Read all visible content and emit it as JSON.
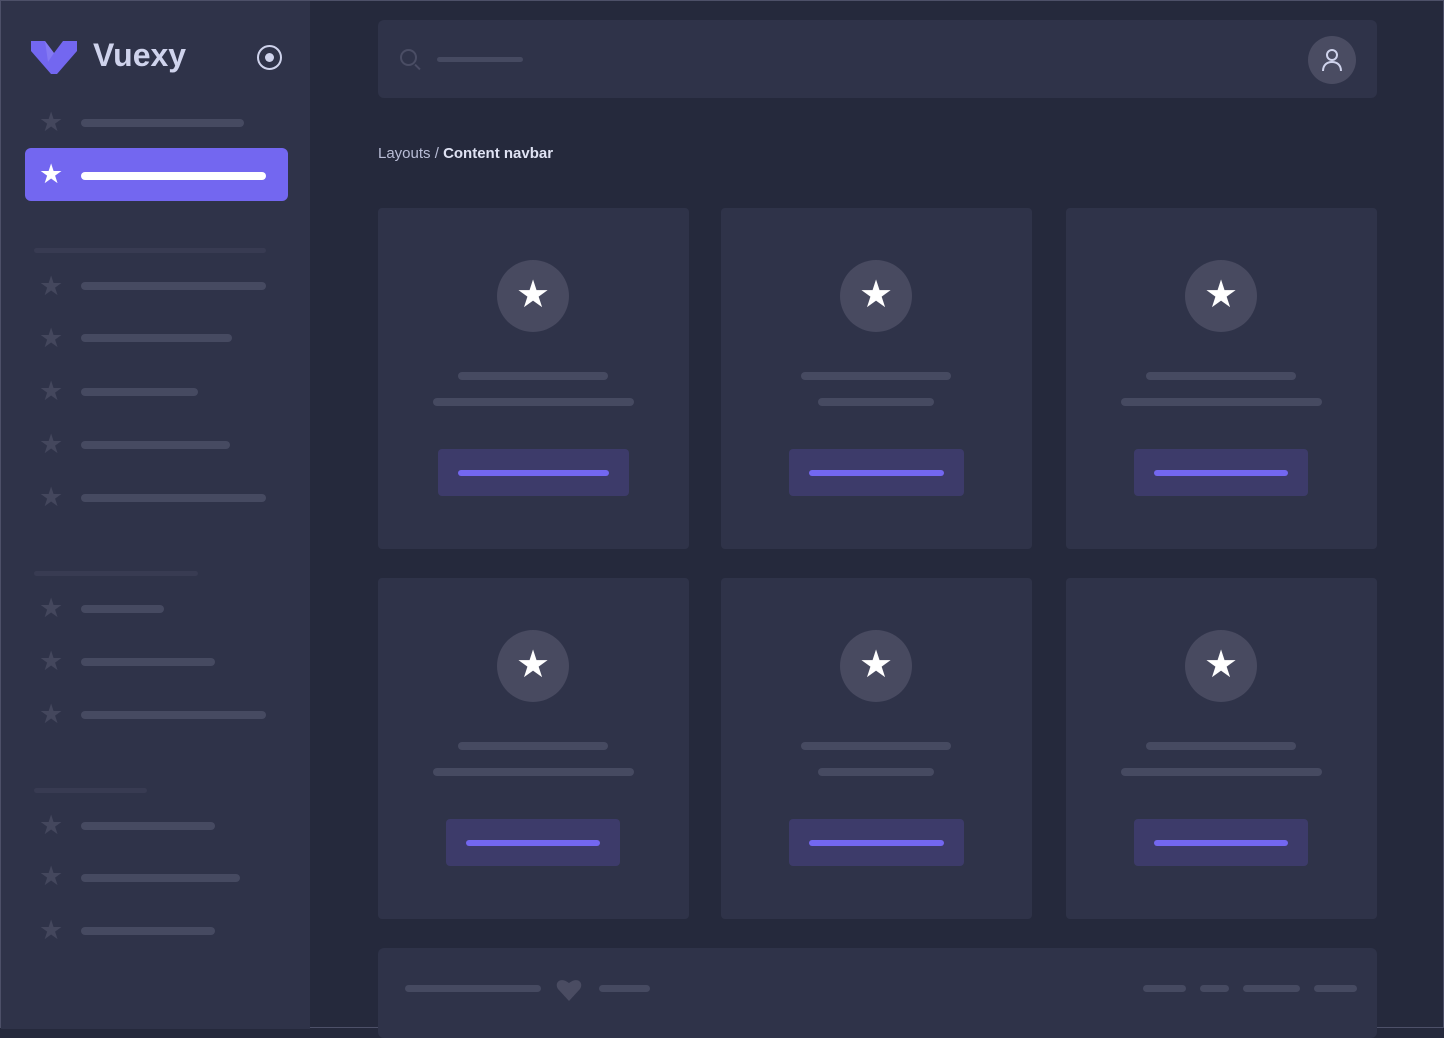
{
  "sidebar": {
    "brand": "Vuexy",
    "logo_color": "#7367f0",
    "icons": {
      "logo": "vuexy-logo",
      "pin": "radio-pin-icon",
      "nav": "star-icon"
    }
  },
  "navbar": {
    "search_icon": "search-icon",
    "user_icon": "user-icon"
  },
  "breadcrumb": {
    "parent": "Layouts",
    "separator": " / ",
    "current": "Content navbar"
  },
  "cards": {
    "icon": "star-icon",
    "count": 6
  },
  "footer": {
    "icon": "heart-icon"
  },
  "colors": {
    "background": "#25293c",
    "surface": "#2f3349",
    "accent": "#7367f0",
    "skeleton": "#464a61"
  }
}
